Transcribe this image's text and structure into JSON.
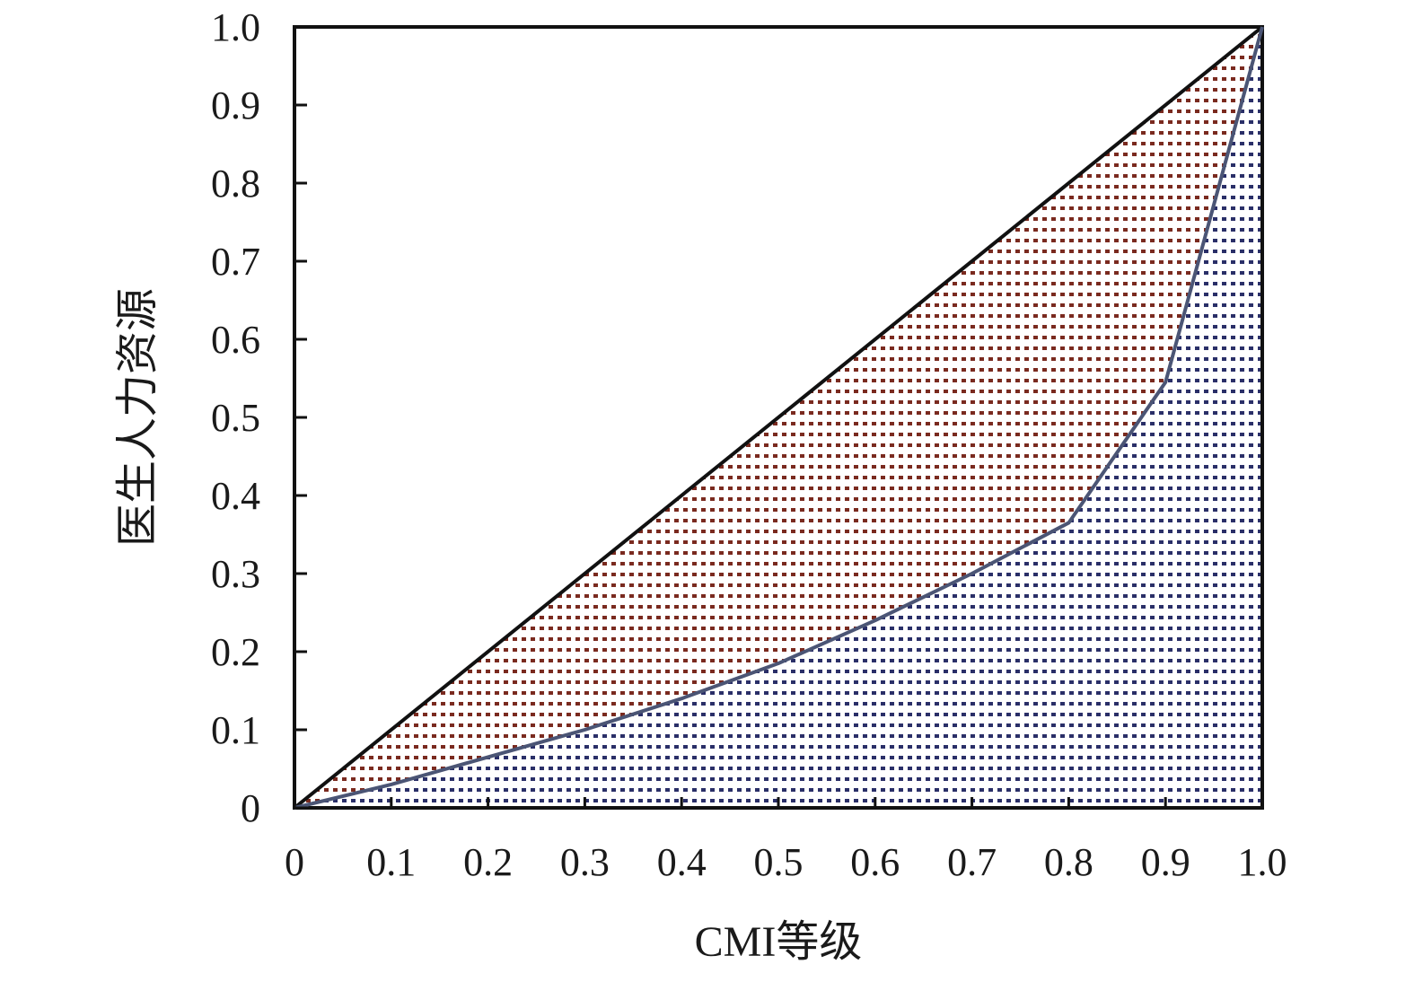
{
  "chart_data": {
    "type": "area",
    "title": "",
    "xlabel": "CMI等级",
    "ylabel": "医生人力资源",
    "xlim": [
      0,
      1.0
    ],
    "ylim": [
      0,
      1.0
    ],
    "x_ticks": [
      "0",
      "0.1",
      "0.2",
      "0.3",
      "0.4",
      "0.5",
      "0.6",
      "0.7",
      "0.8",
      "0.9",
      "1.0"
    ],
    "y_ticks": [
      "0",
      "0.1",
      "0.2",
      "0.3",
      "0.4",
      "0.5",
      "0.6",
      "0.7",
      "0.8",
      "0.9",
      "1.0"
    ],
    "grid": false,
    "series": [
      {
        "role": "equality-line",
        "x": [
          0,
          1.0
        ],
        "y": [
          0,
          1.0
        ]
      },
      {
        "role": "lorenz-curve",
        "x": [
          0,
          0.1,
          0.2,
          0.3,
          0.4,
          0.5,
          0.6,
          0.7,
          0.8,
          0.9,
          1.0
        ],
        "y": [
          0,
          0.03,
          0.065,
          0.1,
          0.14,
          0.185,
          0.24,
          0.3,
          0.365,
          0.545,
          1.0
        ]
      }
    ],
    "colors": {
      "upper_fill_dots": "#7a2a1f",
      "lower_fill_dots": "#2a2f68",
      "curve_stroke": "#4b5575",
      "frame": "#111111"
    }
  }
}
